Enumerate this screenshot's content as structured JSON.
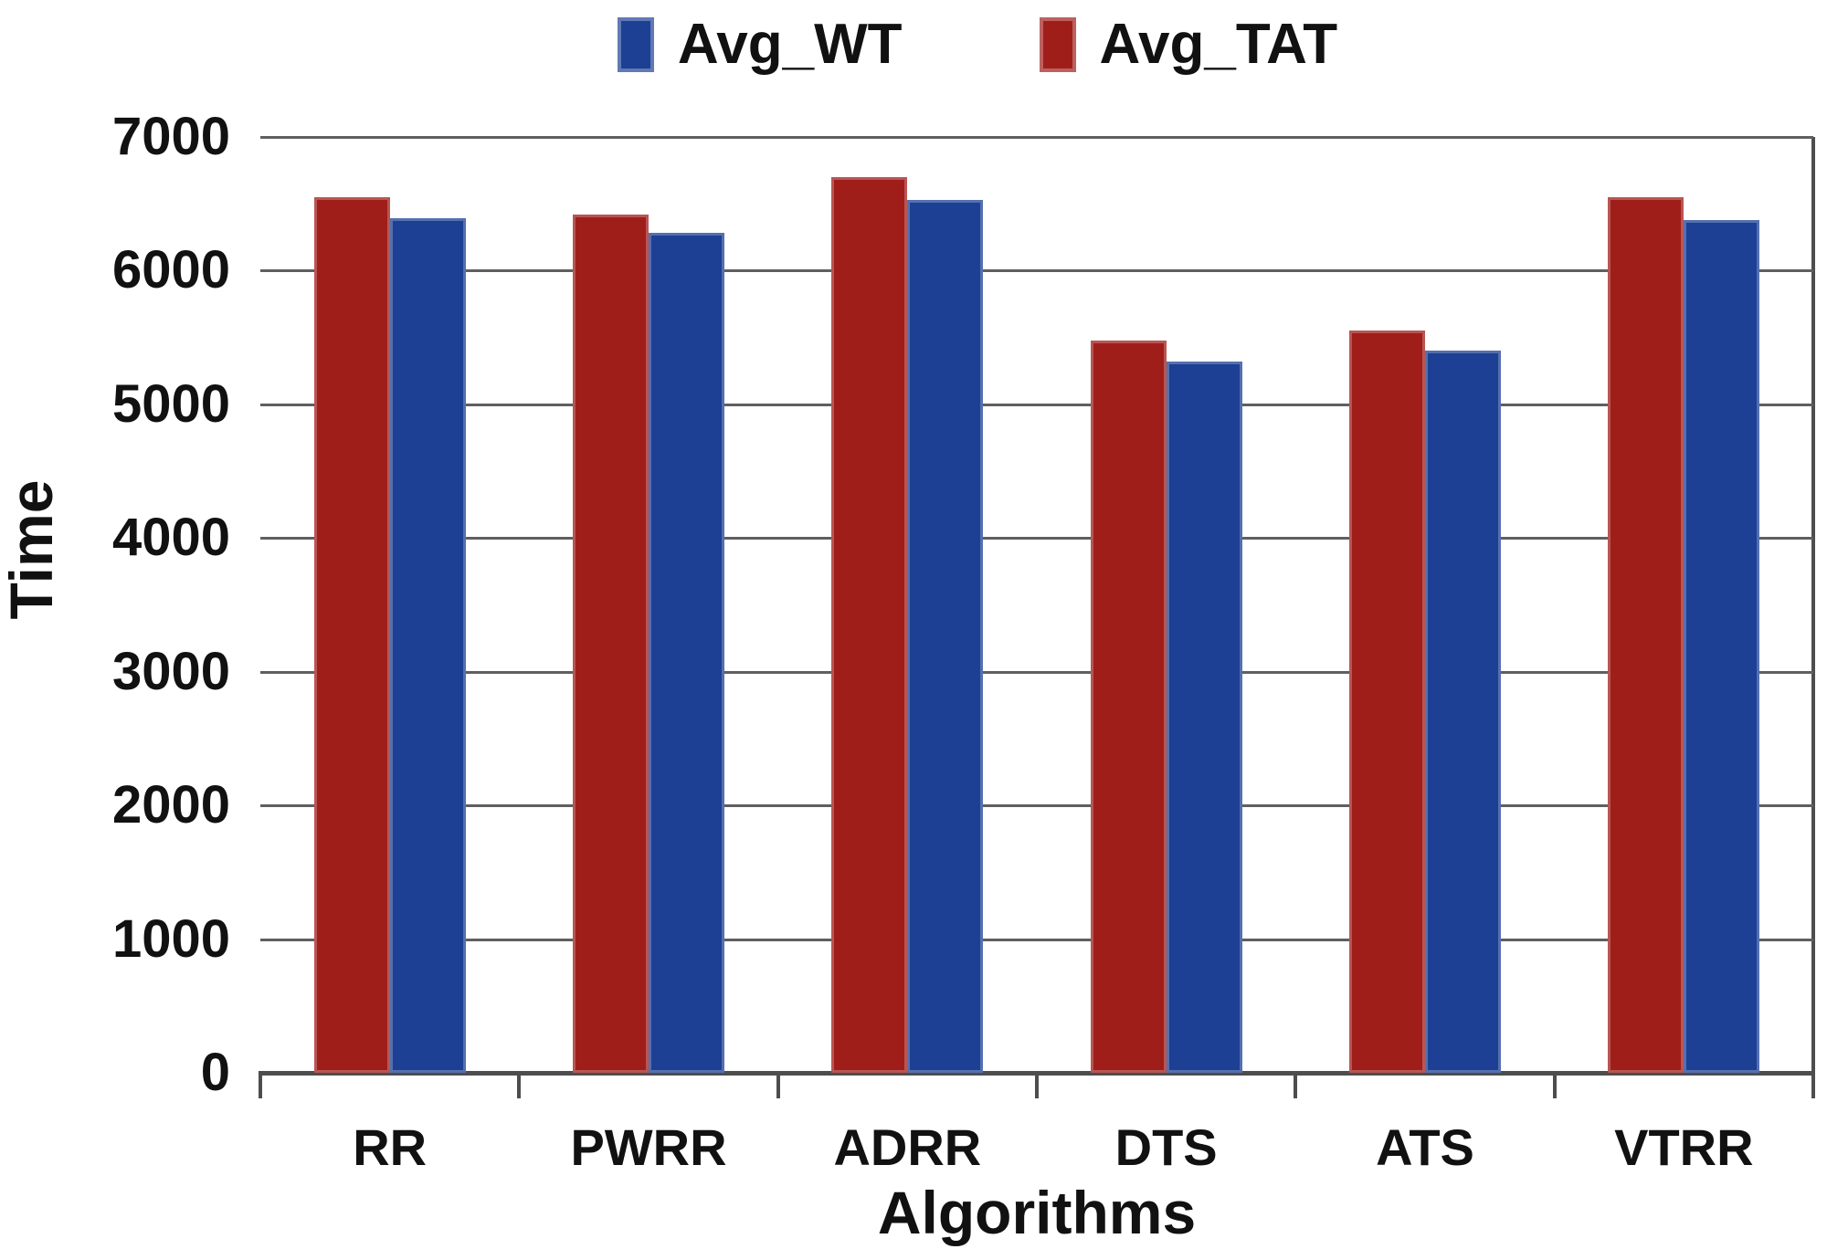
{
  "chart_data": {
    "type": "bar",
    "title": "",
    "categories": [
      "RR",
      "PWRR",
      "ADRR",
      "DTS",
      "ATS",
      "VTRR"
    ],
    "series": [
      {
        "name": "Avg_TAT",
        "color": "#A01E1A",
        "values": [
          6550,
          6420,
          6700,
          5480,
          5550,
          6550
        ]
      },
      {
        "name": "Avg_WT",
        "color": "#1D4094",
        "values": [
          6390,
          6280,
          6530,
          5320,
          5400,
          6380
        ]
      }
    ],
    "xlabel": "Algorithms",
    "ylabel": "Time",
    "ylim": [
      0,
      7000
    ],
    "y_ticks": [
      0,
      1000,
      2000,
      3000,
      4000,
      5000,
      6000,
      7000
    ],
    "grid": "horizontal-only",
    "legend_position": "top-center",
    "legend_order_as_displayed": [
      "Avg_WT",
      "Avg_TAT"
    ],
    "bar_order_in_group": [
      "Avg_TAT",
      "Avg_WT"
    ]
  },
  "legend": {
    "items": [
      {
        "label": "Avg_WT",
        "color": "#1D4094"
      },
      {
        "label": "Avg_TAT",
        "color": "#A01E1A"
      }
    ]
  },
  "axes": {
    "x_title": "Algorithms",
    "y_title": "Time",
    "y_tick_labels": [
      "0",
      "1000",
      "2000",
      "3000",
      "4000",
      "5000",
      "6000",
      "7000"
    ],
    "x_tick_labels": [
      "RR",
      "PWRR",
      "ADRR",
      "DTS",
      "ATS",
      "VTRR"
    ]
  },
  "colors": {
    "gridline": "#5f5f5f",
    "axis": "#4d4d4d",
    "text": "#111111",
    "background": "#ffffff"
  }
}
